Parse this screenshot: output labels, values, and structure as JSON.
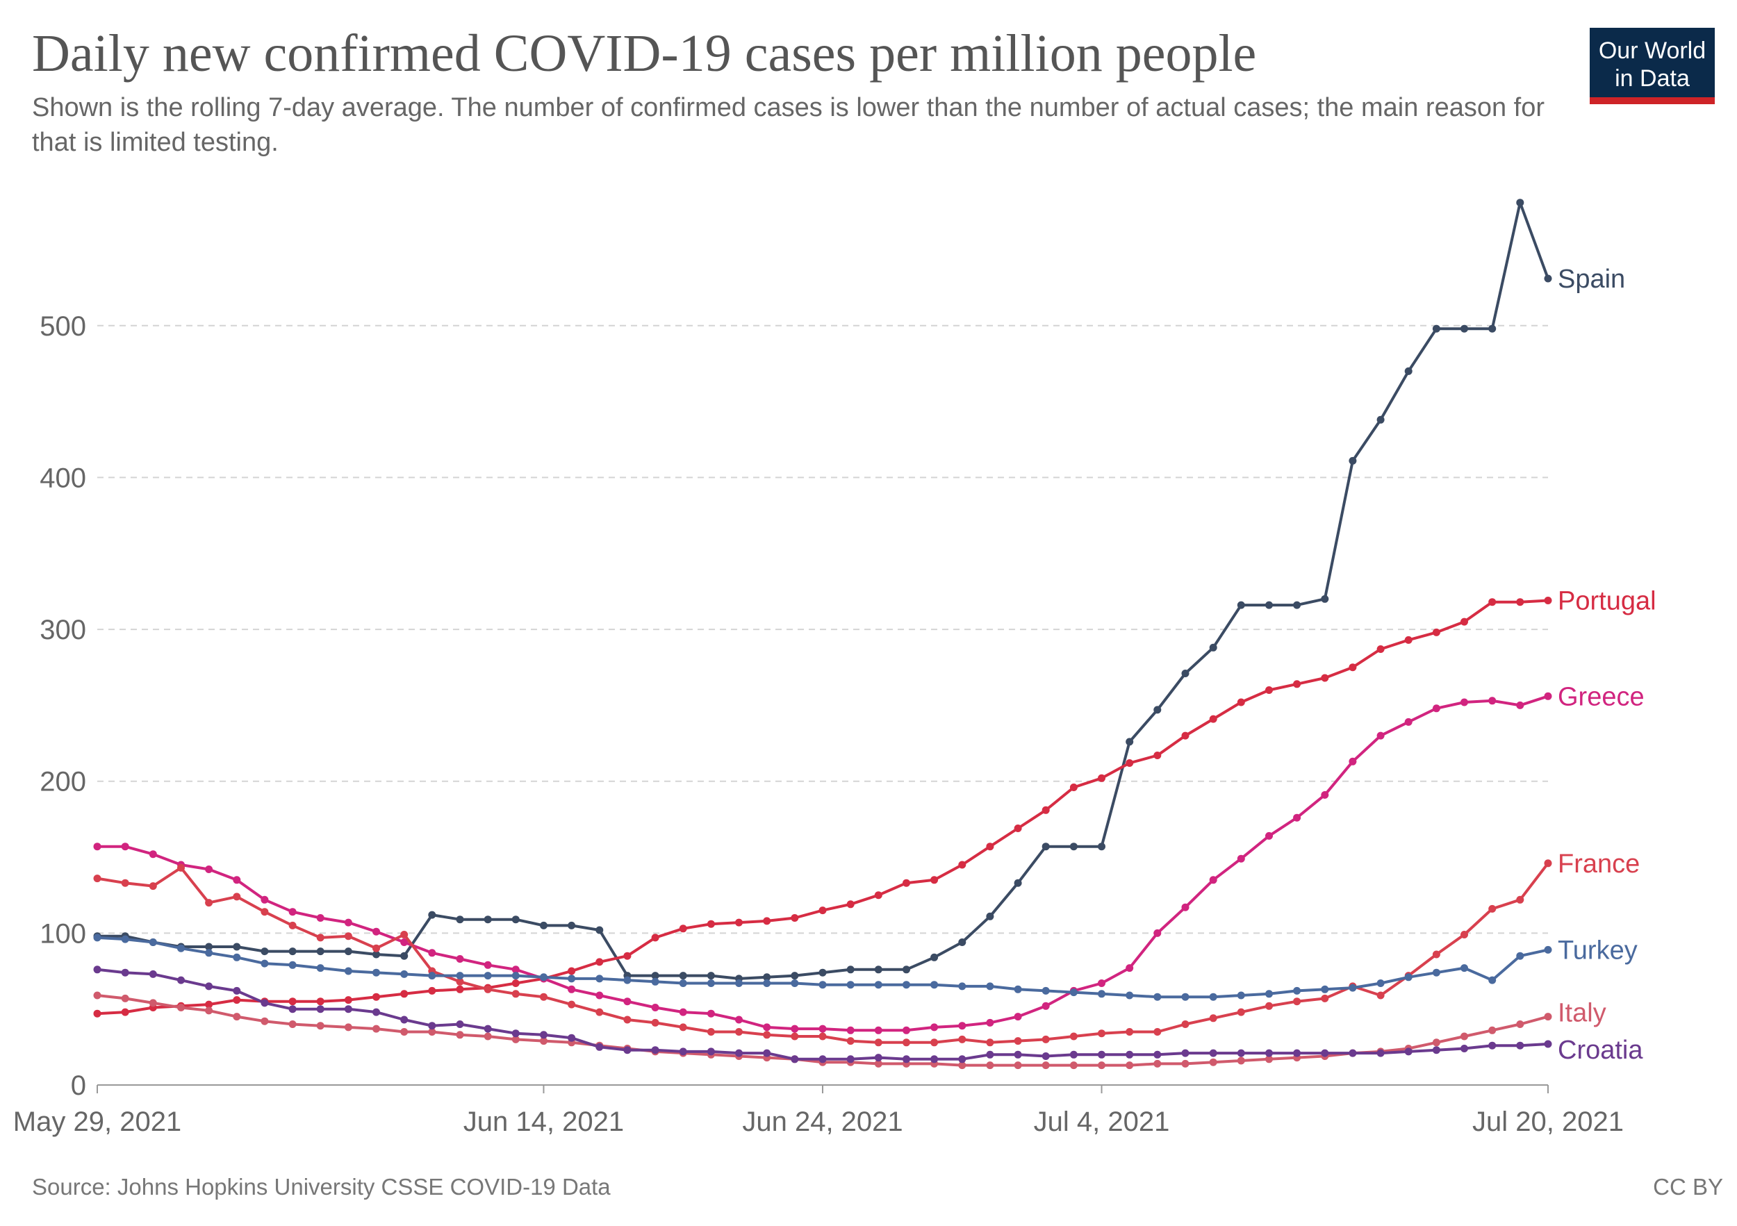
{
  "header": {
    "title": "Daily new confirmed COVID-19 cases per million people",
    "subtitle": "Shown is the rolling 7-day average. The number of confirmed cases is lower than the number of actual cases; the main reason for that is limited testing.",
    "logo_line1": "Our World",
    "logo_line2": "in Data"
  },
  "footer": {
    "source": "Source: Johns Hopkins University CSSE COVID-19 Data",
    "license": "CC BY"
  },
  "colors": {
    "Spain": "#3b4b63",
    "Portugal": "#d62c43",
    "Greece": "#d1247f",
    "France": "#d8404e",
    "Turkey": "#4a6a9e",
    "Italy": "#d05a6c",
    "Croatia": "#6a3a8e"
  },
  "chart_data": {
    "type": "line",
    "title": "Daily new confirmed COVID-19 cases per million people",
    "xlabel": "",
    "ylabel": "",
    "x_start": "May 29, 2021",
    "x_end": "Jul 20, 2021",
    "x_tick_labels": [
      "May 29, 2021",
      "Jun 14, 2021",
      "Jun 24, 2021",
      "Jul 4, 2021",
      "Jul 20, 2021"
    ],
    "x_tick_dates": [
      "2021-05-29",
      "2021-06-14",
      "2021-06-24",
      "2021-07-04",
      "2021-07-20"
    ],
    "ylim": [
      0,
      590
    ],
    "y_ticks": [
      0,
      100,
      200,
      300,
      400,
      500
    ],
    "grid": "horizontal dashed",
    "legend": "labels at line ends (right)",
    "series": [
      {
        "name": "Spain",
        "values": [
          98,
          98,
          94,
          91,
          91,
          91,
          88,
          88,
          88,
          88,
          86,
          85,
          112,
          109,
          109,
          109,
          105,
          105,
          102,
          72,
          72,
          72,
          72,
          70,
          71,
          72,
          74,
          76,
          76,
          76,
          84,
          94,
          111,
          133,
          157,
          157,
          157,
          226,
          247,
          271,
          288,
          316,
          316,
          316,
          320,
          411,
          438,
          470,
          498,
          498,
          498,
          581,
          531
        ]
      },
      {
        "name": "Portugal",
        "values": [
          47,
          48,
          51,
          52,
          53,
          56,
          55,
          55,
          55,
          56,
          58,
          60,
          62,
          63,
          64,
          67,
          70,
          75,
          81,
          85,
          97,
          103,
          106,
          107,
          108,
          110,
          115,
          119,
          125,
          133,
          135,
          145,
          157,
          169,
          181,
          196,
          202,
          212,
          217,
          230,
          241,
          252,
          260,
          264,
          268,
          275,
          287,
          293,
          298,
          305,
          318,
          318,
          319
        ]
      },
      {
        "name": "Greece",
        "values": [
          157,
          157,
          152,
          145,
          142,
          135,
          122,
          114,
          110,
          107,
          101,
          94,
          87,
          83,
          79,
          76,
          70,
          63,
          59,
          55,
          51,
          48,
          47,
          43,
          38,
          37,
          37,
          36,
          36,
          36,
          38,
          39,
          41,
          45,
          52,
          62,
          67,
          77,
          100,
          117,
          135,
          149,
          164,
          176,
          191,
          213,
          230,
          239,
          248,
          252,
          253,
          250,
          256
        ]
      },
      {
        "name": "France",
        "values": [
          136,
          133,
          131,
          143,
          120,
          124,
          114,
          105,
          97,
          98,
          90,
          99,
          75,
          68,
          63,
          60,
          58,
          53,
          48,
          43,
          41,
          38,
          35,
          35,
          33,
          32,
          32,
          29,
          28,
          28,
          28,
          30,
          28,
          29,
          30,
          32,
          34,
          35,
          35,
          40,
          44,
          48,
          52,
          55,
          57,
          65,
          59,
          72,
          86,
          99,
          116,
          122,
          146
        ]
      },
      {
        "name": "Turkey",
        "values": [
          97,
          96,
          94,
          90,
          87,
          84,
          80,
          79,
          77,
          75,
          74,
          73,
          72,
          72,
          72,
          72,
          71,
          70,
          70,
          69,
          68,
          67,
          67,
          67,
          67,
          67,
          66,
          66,
          66,
          66,
          66,
          65,
          65,
          63,
          62,
          61,
          60,
          59,
          58,
          58,
          58,
          59,
          60,
          62,
          63,
          64,
          67,
          71,
          74,
          77,
          69,
          85,
          89
        ]
      },
      {
        "name": "Italy",
        "values": [
          59,
          57,
          54,
          51,
          49,
          45,
          42,
          40,
          39,
          38,
          37,
          35,
          35,
          33,
          32,
          30,
          29,
          28,
          26,
          24,
          22,
          21,
          20,
          19,
          18,
          17,
          15,
          15,
          14,
          14,
          14,
          13,
          13,
          13,
          13,
          13,
          13,
          13,
          14,
          14,
          15,
          16,
          17,
          18,
          19,
          21,
          22,
          24,
          28,
          32,
          36,
          40,
          45
        ]
      },
      {
        "name": "Croatia",
        "values": [
          76,
          74,
          73,
          69,
          65,
          62,
          54,
          50,
          50,
          50,
          48,
          43,
          39,
          40,
          37,
          34,
          33,
          31,
          25,
          23,
          23,
          22,
          22,
          21,
          21,
          17,
          17,
          17,
          18,
          17,
          17,
          17,
          20,
          20,
          19,
          20,
          20,
          20,
          20,
          21,
          21,
          21,
          21,
          21,
          21,
          21,
          21,
          22,
          23,
          24,
          26,
          26,
          27
        ]
      }
    ]
  }
}
